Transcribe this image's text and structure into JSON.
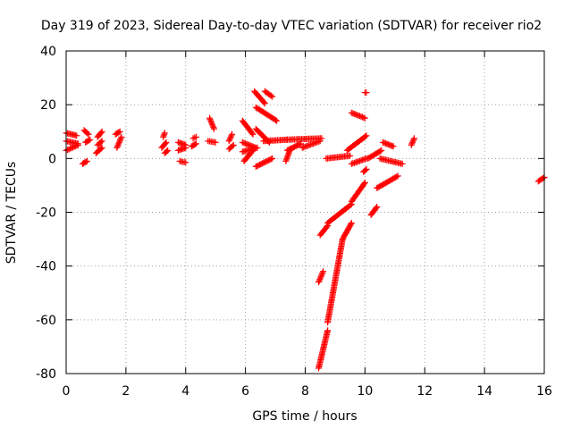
{
  "chart_data": {
    "type": "scatter",
    "title": "Day 319 of 2023, Sidereal Day-to-day VTEC variation (SDTVAR) for receiver rio2",
    "xlabel": "GPS time / hours",
    "ylabel": "SDTVAR / TECUs",
    "xlim": [
      0,
      16
    ],
    "ylim": [
      -80,
      40
    ],
    "x_ticks": [
      0,
      2,
      4,
      6,
      8,
      10,
      12,
      14,
      16
    ],
    "y_ticks": [
      -80,
      -60,
      -40,
      -20,
      0,
      20,
      40
    ],
    "x_tick_labels": [
      "0",
      "2",
      "4",
      "6",
      "8",
      "10",
      "12",
      "14",
      "16"
    ],
    "y_tick_labels": [
      "-80",
      "-60",
      "-40",
      "-20",
      "0",
      "20",
      "40"
    ],
    "grid": true,
    "marker": "+",
    "color": "#ff0000",
    "segments": [
      {
        "x": [
          0.0,
          0.35
        ],
        "y": [
          9.5,
          8.5
        ]
      },
      {
        "x": [
          0.0,
          0.4
        ],
        "y": [
          6.5,
          5.5
        ]
      },
      {
        "x": [
          0.0,
          0.4
        ],
        "y": [
          3.0,
          5.0
        ]
      },
      {
        "x": [
          0.55,
          0.7
        ],
        "y": [
          -2.0,
          -1.0
        ]
      },
      {
        "x": [
          0.6,
          0.75
        ],
        "y": [
          10.5,
          9.0
        ]
      },
      {
        "x": [
          0.65,
          0.8
        ],
        "y": [
          6.0,
          7.0
        ]
      },
      {
        "x": [
          1.05,
          1.2
        ],
        "y": [
          8.0,
          10.0
        ]
      },
      {
        "x": [
          1.0,
          1.2
        ],
        "y": [
          2.0,
          4.0
        ]
      },
      {
        "x": [
          1.05,
          1.2
        ],
        "y": [
          5.0,
          6.5
        ]
      },
      {
        "x": [
          1.7,
          1.85
        ],
        "y": [
          4.0,
          8.0
        ]
      },
      {
        "x": [
          1.65,
          1.8
        ],
        "y": [
          9.0,
          10.0
        ]
      },
      {
        "x": [
          3.25,
          3.3
        ],
        "y": [
          8.0,
          9.5
        ]
      },
      {
        "x": [
          3.2,
          3.35
        ],
        "y": [
          4.0,
          6.0
        ]
      },
      {
        "x": [
          3.3,
          3.4
        ],
        "y": [
          2.0,
          3.0
        ]
      },
      {
        "x": [
          3.75,
          4.0
        ],
        "y": [
          6.0,
          5.0
        ]
      },
      {
        "x": [
          3.75,
          4.0
        ],
        "y": [
          3.0,
          4.0
        ]
      },
      {
        "x": [
          3.8,
          4.0
        ],
        "y": [
          -1.0,
          -1.5
        ]
      },
      {
        "x": [
          4.25,
          4.35
        ],
        "y": [
          7.5,
          8.0
        ]
      },
      {
        "x": [
          4.2,
          4.35
        ],
        "y": [
          4.5,
          5.5
        ]
      },
      {
        "x": [
          4.8,
          4.95
        ],
        "y": [
          15.0,
          11.0
        ]
      },
      {
        "x": [
          4.75,
          5.0
        ],
        "y": [
          6.5,
          6.0
        ]
      },
      {
        "x": [
          5.45,
          5.55
        ],
        "y": [
          6.5,
          9.0
        ]
      },
      {
        "x": [
          5.45,
          5.6
        ],
        "y": [
          3.5,
          5.0
        ]
      },
      {
        "x": [
          5.9,
          6.25
        ],
        "y": [
          14.0,
          9.0
        ]
      },
      {
        "x": [
          5.9,
          6.35
        ],
        "y": [
          6.0,
          4.0
        ]
      },
      {
        "x": [
          5.9,
          6.4
        ],
        "y": [
          2.5,
          4.0
        ]
      },
      {
        "x": [
          5.95,
          6.25
        ],
        "y": [
          -1.0,
          3.0
        ]
      },
      {
        "x": [
          6.35,
          6.9
        ],
        "y": [
          -3.0,
          0.0
        ]
      },
      {
        "x": [
          6.3,
          6.65
        ],
        "y": [
          25.0,
          20.5
        ]
      },
      {
        "x": [
          6.65,
          6.9
        ],
        "y": [
          25.0,
          23.0
        ]
      },
      {
        "x": [
          6.35,
          7.05
        ],
        "y": [
          19.0,
          14.0
        ]
      },
      {
        "x": [
          6.35,
          6.8
        ],
        "y": [
          11.0,
          6.0
        ]
      },
      {
        "x": [
          6.6,
          7.4
        ],
        "y": [
          6.5,
          7.0
        ]
      },
      {
        "x": [
          7.35,
          7.5
        ],
        "y": [
          -1.0,
          3.5
        ]
      },
      {
        "x": [
          7.4,
          7.85
        ],
        "y": [
          3.0,
          5.5
        ]
      },
      {
        "x": [
          7.4,
          8.55
        ],
        "y": [
          7.0,
          7.5
        ]
      },
      {
        "x": [
          7.9,
          8.5
        ],
        "y": [
          4.0,
          6.5
        ]
      },
      {
        "x": [
          8.45,
          8.6
        ],
        "y": [
          -46.0,
          -42.0
        ]
      },
      {
        "x": [
          8.5,
          8.75
        ],
        "y": [
          -28.5,
          -25.0
        ]
      },
      {
        "x": [
          8.45,
          8.75
        ],
        "y": [
          -78.0,
          -64.0
        ]
      },
      {
        "x": [
          8.75,
          9.25
        ],
        "y": [
          -61.0,
          -30.0
        ]
      },
      {
        "x": [
          9.25,
          9.55
        ],
        "y": [
          -30.0,
          -24.0
        ]
      },
      {
        "x": [
          8.75,
          9.55
        ],
        "y": [
          -24.0,
          -17.0
        ]
      },
      {
        "x": [
          9.55,
          10.0
        ],
        "y": [
          -16.0,
          -9.0
        ]
      },
      {
        "x": [
          8.7,
          9.5
        ],
        "y": [
          0.0,
          1.0
        ]
      },
      {
        "x": [
          9.4,
          10.05
        ],
        "y": [
          3.0,
          8.5
        ]
      },
      {
        "x": [
          9.55,
          10.0
        ],
        "y": [
          17.0,
          15.0
        ]
      },
      {
        "x": [
          9.95,
          10.05
        ],
        "y": [
          -5.0,
          -4.0
        ]
      },
      {
        "x": [
          10.0,
          10.05
        ],
        "y": [
          24.5,
          24.5
        ]
      },
      {
        "x": [
          9.55,
          10.05
        ],
        "y": [
          -2.0,
          0.0
        ]
      },
      {
        "x": [
          10.2,
          10.4
        ],
        "y": [
          -21.0,
          -18.0
        ]
      },
      {
        "x": [
          10.4,
          11.1
        ],
        "y": [
          -11.0,
          -6.5
        ]
      },
      {
        "x": [
          10.1,
          10.55
        ],
        "y": [
          0.0,
          3.0
        ]
      },
      {
        "x": [
          10.6,
          10.95
        ],
        "y": [
          6.0,
          4.5
        ]
      },
      {
        "x": [
          10.5,
          11.25
        ],
        "y": [
          0.0,
          -2.0
        ]
      },
      {
        "x": [
          11.55,
          11.65
        ],
        "y": [
          5.0,
          7.5
        ]
      },
      {
        "x": [
          15.8,
          16.0
        ],
        "y": [
          -8.5,
          -7.0
        ]
      }
    ]
  }
}
